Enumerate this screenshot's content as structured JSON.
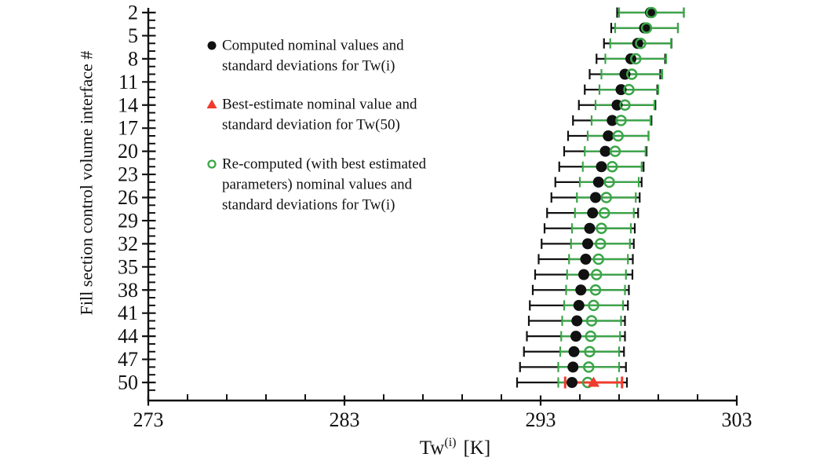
{
  "colors": {
    "computed": "#111111",
    "recomputed": "#3aa648",
    "best_estimate": "#ef3b2d",
    "background": "#ffffff"
  },
  "chart_data": {
    "type": "scatter",
    "subtype": "horizontal-error-bars",
    "title": "",
    "xlabel": {
      "base": "Tw",
      "sup": "(i)",
      "unit": "[K]",
      "display": "Tw(i) [K]"
    },
    "ylabel": "Fill section control volume interface #",
    "x_axis": {
      "min": 273,
      "max": 303,
      "major_ticks": [
        273,
        283,
        293,
        303
      ],
      "minor_step": 2
    },
    "y_axis": {
      "min": 2,
      "max": 50,
      "major_ticks": [
        2,
        5,
        8,
        11,
        14,
        17,
        20,
        23,
        26,
        29,
        32,
        35,
        38,
        41,
        44,
        47,
        50
      ],
      "minor_step": 1
    },
    "grid": false,
    "legend_position": "upper-left-inside",
    "series": [
      {
        "name": "computed",
        "label": "Computed nominal values and standard deviations for Tw(i)",
        "marker": "filled-circle",
        "color": "#111111",
        "points": [
          {
            "interface": 2,
            "mean": 298.6,
            "sd": 1.7
          },
          {
            "interface": 4,
            "mean": 298.3,
            "sd": 1.7
          },
          {
            "interface": 6,
            "mean": 297.95,
            "sd": 1.72
          },
          {
            "interface": 8,
            "mean": 297.6,
            "sd": 1.75
          },
          {
            "interface": 10,
            "mean": 297.3,
            "sd": 1.8
          },
          {
            "interface": 12,
            "mean": 297.1,
            "sd": 1.85
          },
          {
            "interface": 14,
            "mean": 296.9,
            "sd": 1.95
          },
          {
            "interface": 16,
            "mean": 296.65,
            "sd": 2.0
          },
          {
            "interface": 18,
            "mean": 296.45,
            "sd": 2.05
          },
          {
            "interface": 20,
            "mean": 296.3,
            "sd": 2.1
          },
          {
            "interface": 22,
            "mean": 296.1,
            "sd": 2.15
          },
          {
            "interface": 24,
            "mean": 295.95,
            "sd": 2.2
          },
          {
            "interface": 26,
            "mean": 295.8,
            "sd": 2.25
          },
          {
            "interface": 28,
            "mean": 295.65,
            "sd": 2.32
          },
          {
            "interface": 30,
            "mean": 295.5,
            "sd": 2.3
          },
          {
            "interface": 32,
            "mean": 295.4,
            "sd": 2.35
          },
          {
            "interface": 34,
            "mean": 295.3,
            "sd": 2.4
          },
          {
            "interface": 36,
            "mean": 295.2,
            "sd": 2.48
          },
          {
            "interface": 38,
            "mean": 295.05,
            "sd": 2.45
          },
          {
            "interface": 40,
            "mean": 294.95,
            "sd": 2.5
          },
          {
            "interface": 42,
            "mean": 294.85,
            "sd": 2.45
          },
          {
            "interface": 44,
            "mean": 294.8,
            "sd": 2.5
          },
          {
            "interface": 46,
            "mean": 294.7,
            "sd": 2.55
          },
          {
            "interface": 48,
            "mean": 294.65,
            "sd": 2.7
          },
          {
            "interface": 50,
            "mean": 294.6,
            "sd": 2.8
          }
        ]
      },
      {
        "name": "recomputed",
        "label": "Re-computed (with best estimated parameters) nominal values and standard deviations for Tw(i)",
        "marker": "open-circle",
        "color": "#3aa648",
        "points": [
          {
            "interface": 2,
            "mean": 298.65,
            "sd": 1.65
          },
          {
            "interface": 4,
            "mean": 298.4,
            "sd": 1.6
          },
          {
            "interface": 6,
            "mean": 298.1,
            "sd": 1.55
          },
          {
            "interface": 8,
            "mean": 297.85,
            "sd": 1.55
          },
          {
            "interface": 10,
            "mean": 297.65,
            "sd": 1.55
          },
          {
            "interface": 12,
            "mean": 297.5,
            "sd": 1.5
          },
          {
            "interface": 14,
            "mean": 297.3,
            "sd": 1.5
          },
          {
            "interface": 16,
            "mean": 297.1,
            "sd": 1.5
          },
          {
            "interface": 18,
            "mean": 296.95,
            "sd": 1.55
          },
          {
            "interface": 20,
            "mean": 296.8,
            "sd": 1.55
          },
          {
            "interface": 22,
            "mean": 296.65,
            "sd": 1.5
          },
          {
            "interface": 24,
            "mean": 296.5,
            "sd": 1.5
          },
          {
            "interface": 26,
            "mean": 296.35,
            "sd": 1.5
          },
          {
            "interface": 28,
            "mean": 296.25,
            "sd": 1.5
          },
          {
            "interface": 30,
            "mean": 296.1,
            "sd": 1.5
          },
          {
            "interface": 32,
            "mean": 296.05,
            "sd": 1.5
          },
          {
            "interface": 34,
            "mean": 295.95,
            "sd": 1.5
          },
          {
            "interface": 36,
            "mean": 295.85,
            "sd": 1.5
          },
          {
            "interface": 38,
            "mean": 295.8,
            "sd": 1.5
          },
          {
            "interface": 40,
            "mean": 295.7,
            "sd": 1.5
          },
          {
            "interface": 42,
            "mean": 295.6,
            "sd": 1.5
          },
          {
            "interface": 44,
            "mean": 295.55,
            "sd": 1.5
          },
          {
            "interface": 46,
            "mean": 295.5,
            "sd": 1.5
          },
          {
            "interface": 48,
            "mean": 295.45,
            "sd": 1.55
          },
          {
            "interface": 50,
            "mean": 295.4,
            "sd": 1.5
          }
        ]
      },
      {
        "name": "best_estimate",
        "label": "Best-estimate nominal value and standard deviation for Tw(50)",
        "marker": "filled-triangle",
        "color": "#ef3b2d",
        "points": [
          {
            "interface": 50,
            "mean": 295.7,
            "sd": 1.45
          }
        ]
      }
    ],
    "legend": [
      {
        "marker": "filled-circle",
        "color": "#111111",
        "lines": [
          "Computed nominal values and",
          "standard deviations for Tw(i)"
        ]
      },
      {
        "marker": "filled-triangle",
        "color": "#ef3b2d",
        "lines": [
          "Best-estimate nominal value and",
          "standard deviation for Tw(50)"
        ]
      },
      {
        "marker": "open-circle",
        "color": "#3aa648",
        "lines": [
          "Re-computed (with best estimated",
          "parameters) nominal values and",
          "standard deviations for Tw(i)"
        ]
      }
    ]
  }
}
